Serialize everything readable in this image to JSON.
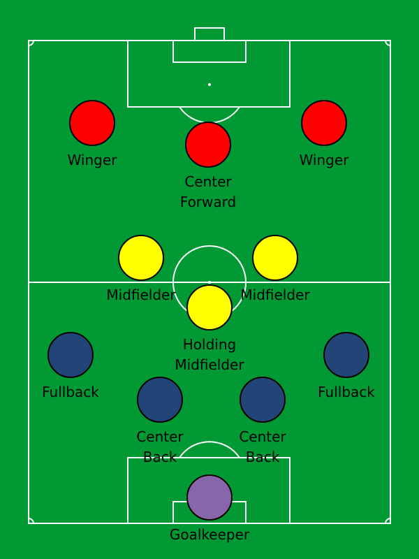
{
  "colors": {
    "pitch": "#009933",
    "lines": "#ffffff",
    "forward": "#ff0000",
    "midfield": "#ffff00",
    "defense": "#224477",
    "goalkeeper": "#8866aa"
  },
  "players": [
    {
      "role": "forward",
      "label": [
        "Winger"
      ]
    },
    {
      "role": "forward",
      "label": [
        "Center",
        "Forward"
      ]
    },
    {
      "role": "forward",
      "label": [
        "Winger"
      ]
    },
    {
      "role": "midfield",
      "label": [
        "Midfielder"
      ]
    },
    {
      "role": "midfield",
      "label": [
        "Midfielder"
      ]
    },
    {
      "role": "midfield",
      "label": [
        "Holding",
        "Midfielder"
      ]
    },
    {
      "role": "defense",
      "label": [
        "Fullback"
      ]
    },
    {
      "role": "defense",
      "label": [
        "Center",
        "Back"
      ]
    },
    {
      "role": "defense",
      "label": [
        "Center",
        "Back"
      ]
    },
    {
      "role": "defense",
      "label": [
        "Fullback"
      ]
    },
    {
      "role": "goalkeeper",
      "label": [
        "Goalkeeper"
      ]
    }
  ]
}
